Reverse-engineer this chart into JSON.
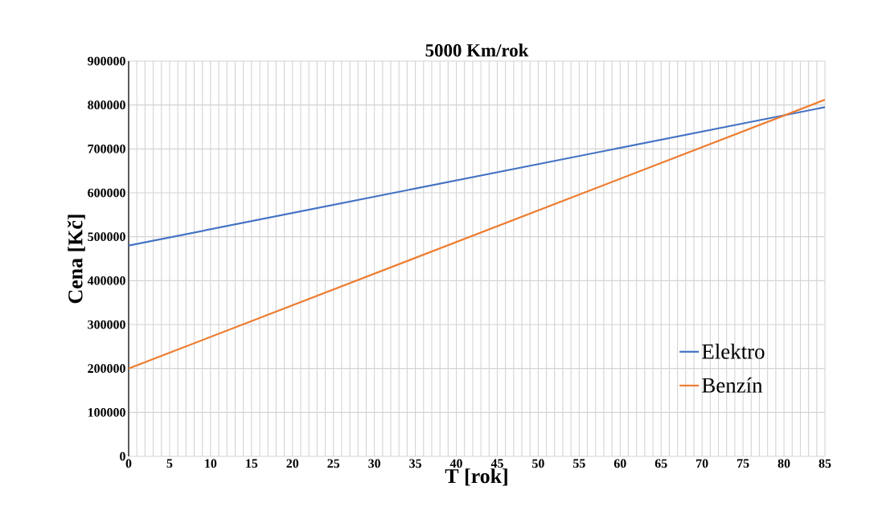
{
  "chart_data": {
    "type": "line",
    "title": "5000 Km/rok",
    "xlabel": "T [rok]",
    "ylabel": "Cena [Kč]",
    "x": [
      0,
      85
    ],
    "series": [
      {
        "name": "Elektro",
        "color": "#4472c4",
        "values": [
          480000,
          795000
        ]
      },
      {
        "name": "Benzín",
        "color": "#ed7d31",
        "values": [
          200000,
          812000
        ]
      }
    ],
    "xlim": [
      0,
      85
    ],
    "xticks": [
      0,
      5,
      10,
      15,
      20,
      25,
      30,
      35,
      40,
      45,
      50,
      55,
      60,
      65,
      70,
      75,
      80,
      85
    ],
    "ylim": [
      0,
      900000
    ],
    "yticks": [
      0,
      100000,
      200000,
      300000,
      400000,
      500000,
      600000,
      700000,
      800000,
      900000
    ],
    "grid": true,
    "legend": "bottom right",
    "marker": "none",
    "line_style": "solid"
  }
}
